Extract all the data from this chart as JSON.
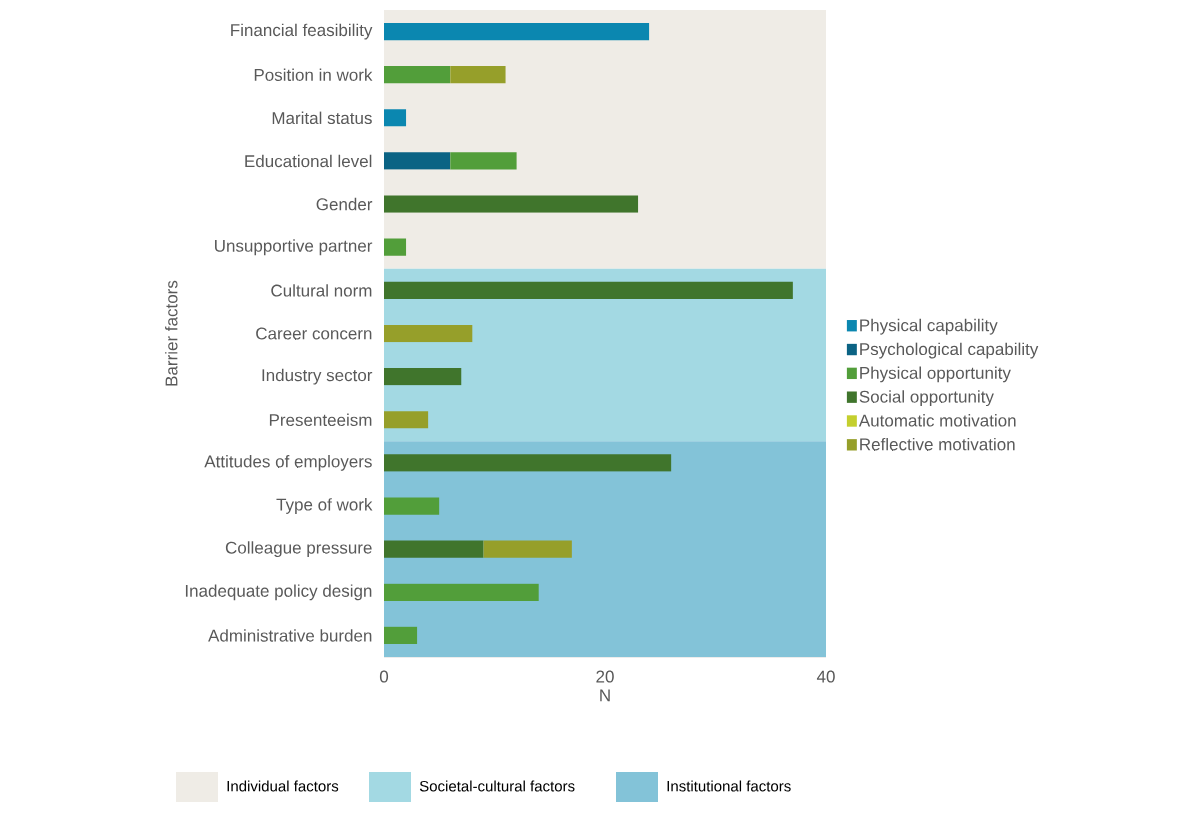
{
  "chart_data": {
    "type": "bar",
    "orientation": "horizontal",
    "stacked": true,
    "ylabel": "Barrier factors",
    "xlabel": "N",
    "categories": [
      "Financial feasibility",
      "Position in work",
      "Marital status",
      "Educational level",
      "Gender",
      "Unsupportive partner",
      "Cultural norm",
      "Career concern",
      "Industry sector",
      "Presenteeism",
      "Attitudes of employers",
      "Type of work",
      "Colleague pressure",
      "Inadequate policy design",
      "Administrative burden"
    ],
    "series": [
      {
        "name": "Physical capability",
        "color": "#0b87b0",
        "values": [
          24,
          null,
          2,
          null,
          null,
          null,
          null,
          null,
          null,
          null,
          null,
          null,
          null,
          null,
          null
        ]
      },
      {
        "name": "Psychological capability",
        "color": "#0b6384",
        "values": [
          null,
          null,
          null,
          6,
          null,
          null,
          null,
          null,
          null,
          null,
          null,
          null,
          null,
          null,
          null
        ]
      },
      {
        "name": "Physical opportunity",
        "color": "#529e3a",
        "values": [
          null,
          6,
          null,
          6,
          null,
          2,
          null,
          null,
          null,
          null,
          null,
          5,
          null,
          14,
          3
        ]
      },
      {
        "name": "Social opportunity",
        "color": "#40752c",
        "values": [
          null,
          null,
          null,
          null,
          23,
          null,
          37,
          null,
          7,
          null,
          26,
          null,
          9,
          null,
          null
        ]
      },
      {
        "name": "Automatic motivation",
        "color": "#c4cf2e",
        "values": [
          null,
          null,
          null,
          null,
          null,
          null,
          null,
          null,
          null,
          null,
          null,
          null,
          null,
          null,
          null
        ]
      },
      {
        "name": "Reflective motivation",
        "color": "#969f2a",
        "values": [
          null,
          5,
          null,
          null,
          null,
          null,
          null,
          8,
          null,
          4,
          null,
          null,
          8,
          null,
          null
        ]
      }
    ],
    "bands": [
      {
        "axis": "y",
        "from": "Financial feasibility",
        "to": "Unsupportive partner",
        "label": "Individual factors",
        "color": "#efece6"
      },
      {
        "axis": "y",
        "from": "Cultural norm",
        "to": "Presenteeism",
        "label": "Societal-cultural factors",
        "color": "#a3d9e3"
      },
      {
        "axis": "y",
        "from": "Attitudes of employers",
        "to": "Administrative burden",
        "label": "Institutional factors",
        "color": "#83c3d8"
      }
    ],
    "xlim": [
      0,
      40
    ],
    "xticks": [
      0,
      20,
      40
    ],
    "grid": false,
    "legend": "right"
  }
}
